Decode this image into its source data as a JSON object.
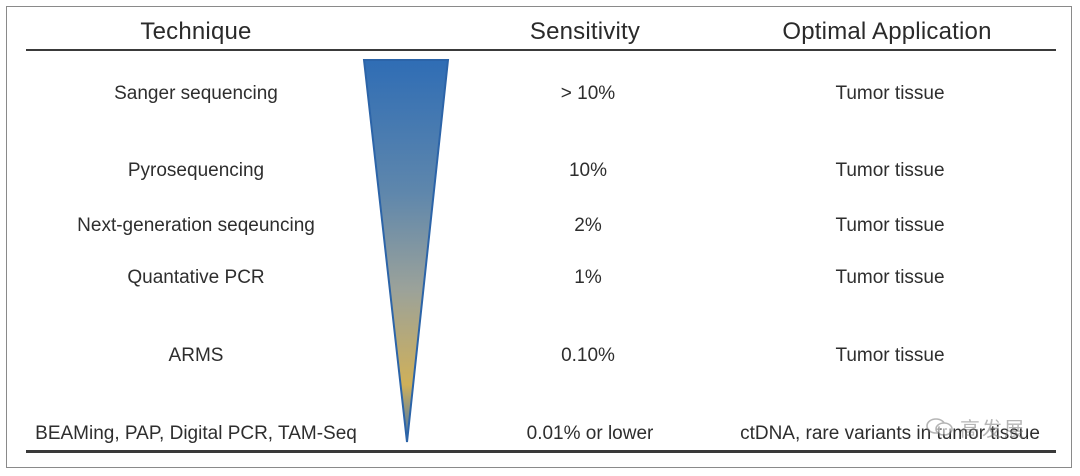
{
  "headers": {
    "technique": "Technique",
    "sensitivity": "Sensitivity",
    "application": "Optimal Application"
  },
  "rows": [
    {
      "technique": "Sanger sequencing",
      "sensitivity": "> 10%",
      "application": "Tumor tissue"
    },
    {
      "technique": "Pyrosequencing",
      "sensitivity": "10%",
      "application": "Tumor tissue"
    },
    {
      "technique": "Next-generation seqeuncing",
      "sensitivity": "2%",
      "application": "Tumor tissue"
    },
    {
      "technique": "Quantative PCR",
      "sensitivity": "1%",
      "application": "Tumor tissue"
    },
    {
      "technique": "ARMS",
      "sensitivity": "0.10%",
      "application": "Tumor tissue"
    },
    {
      "technique": "BEAMing, PAP, Digital PCR, TAM-Seq",
      "sensitivity": "0.01% or lower",
      "application": "ctDNA, rare variants in tumor tissue"
    }
  ],
  "watermark": {
    "text": "高发展",
    "icon": "wechat-bubbles-icon"
  },
  "colors": {
    "wedge_top": "#2f6db5",
    "wedge_bottom": "#d6b24a",
    "rule": "#3a3a3a"
  }
}
